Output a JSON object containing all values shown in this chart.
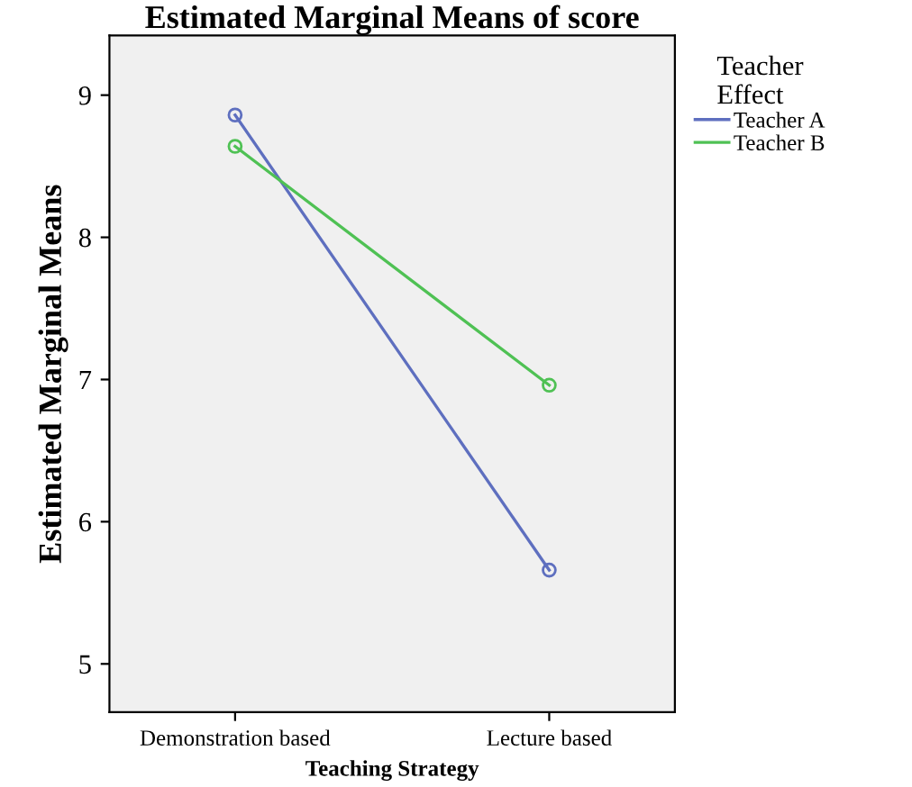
{
  "chart_data": {
    "type": "line",
    "title": "Estimated Marginal Means of score",
    "xlabel": "Teaching Strategy",
    "ylabel": "Estimated Marginal Means",
    "legend_title": "Teacher\nEffect",
    "categories": [
      "Demonstration based",
      "Lecture based"
    ],
    "series": [
      {
        "name": "Teacher A",
        "color": "#5e6fbf",
        "values": [
          8.86,
          5.66
        ]
      },
      {
        "name": "Teacher B",
        "color": "#4fc154",
        "values": [
          8.64,
          6.96
        ]
      }
    ],
    "ylim": [
      4.66,
      9.42
    ],
    "yticks": [
      5,
      6,
      7,
      8,
      9
    ],
    "marker": "circle",
    "legend": "top right",
    "grid": false
  }
}
